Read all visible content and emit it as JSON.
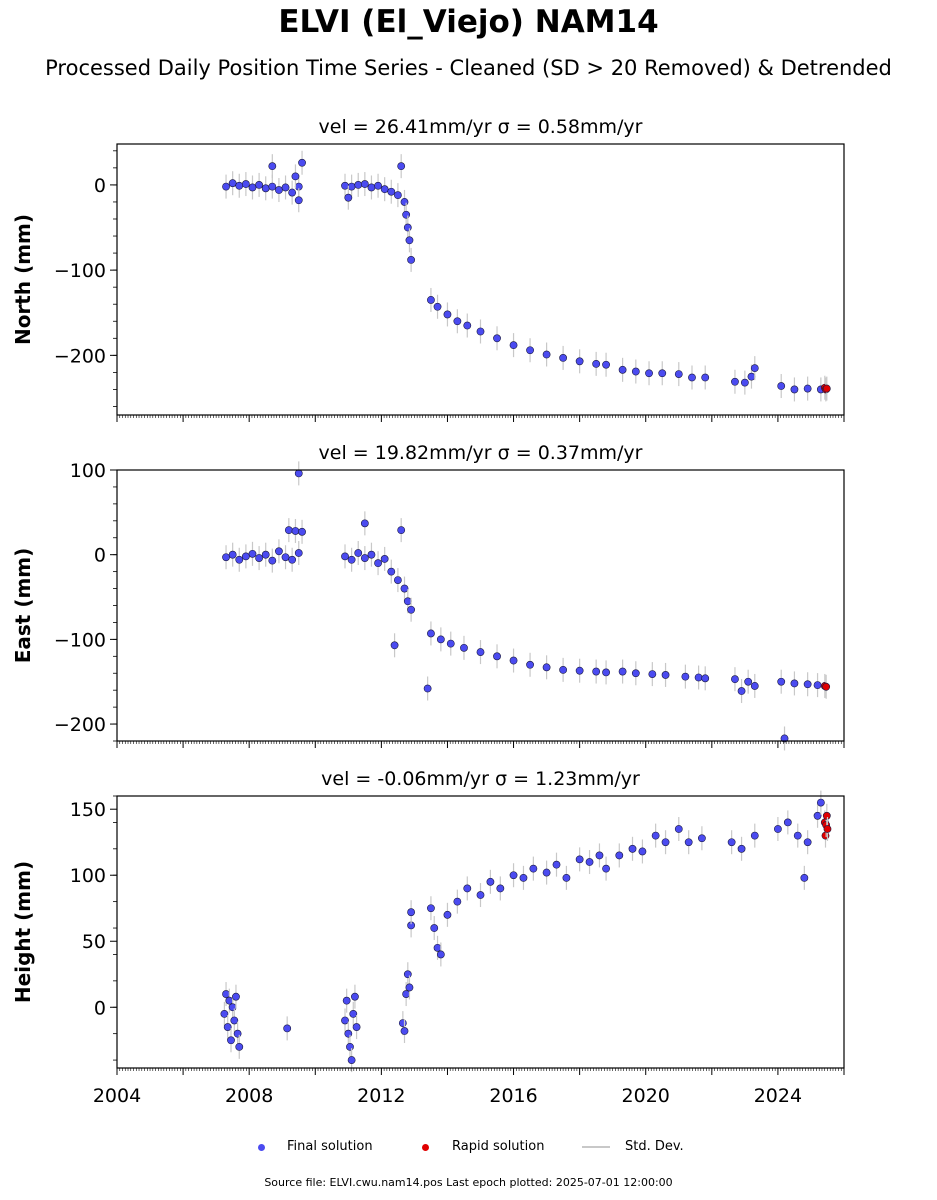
{
  "title": "ELVI (El_Viejo) NAM14",
  "subtitle": "Processed Daily Position Time Series - Cleaned (SD > 20 Removed) & Detrended",
  "footer": "Source file: ELVI.cwu.nam14.pos  Last epoch plotted: 2025-07-01 12:00:00",
  "legend": {
    "final_label": "Final solution",
    "rapid_label": "Rapid solution",
    "sd_label": "Std. Dev."
  },
  "colors": {
    "final": "#4b4bf0",
    "rapid": "#e00000",
    "std_dev": "#c8c8c8",
    "marker_edge": "#1a1a40"
  },
  "chart_data": [
    {
      "type": "scatter",
      "panel_title": "vel = 26.41mm/yr   σ = 0.58mm/yr",
      "ylabel": "North (mm)",
      "xlim": [
        2004,
        2026
      ],
      "ylim": [
        -270,
        48
      ],
      "yticks": [
        0,
        -100,
        -200
      ],
      "ytick_labels": [
        "0",
        "−100",
        "−200"
      ],
      "show_xtick_labels": false,
      "series": [
        {
          "name": "Final solution",
          "points": [
            [
              2007.3,
              -2
            ],
            [
              2007.5,
              2
            ],
            [
              2007.7,
              -1
            ],
            [
              2007.9,
              1
            ],
            [
              2008.1,
              -3
            ],
            [
              2008.3,
              0
            ],
            [
              2008.5,
              -4
            ],
            [
              2008.7,
              -2
            ],
            [
              2008.9,
              -6
            ],
            [
              2009.1,
              -3
            ],
            [
              2009.3,
              -9
            ],
            [
              2009.5,
              -2
            ],
            [
              2008.7,
              22
            ],
            [
              2009.4,
              10
            ],
            [
              2009.6,
              26
            ],
            [
              2009.5,
              -18
            ],
            [
              2010.9,
              -1
            ],
            [
              2011.1,
              -2
            ],
            [
              2011.3,
              0
            ],
            [
              2011.5,
              1
            ],
            [
              2011.7,
              -3
            ],
            [
              2011.9,
              -1
            ],
            [
              2012.1,
              -5
            ],
            [
              2012.3,
              -8
            ],
            [
              2012.5,
              -12
            ],
            [
              2012.6,
              22
            ],
            [
              2011.0,
              -15
            ],
            [
              2012.7,
              -20
            ],
            [
              2012.75,
              -35
            ],
            [
              2012.8,
              -50
            ],
            [
              2012.85,
              -65
            ],
            [
              2012.9,
              -88
            ],
            [
              2013.5,
              -135
            ],
            [
              2013.7,
              -143
            ],
            [
              2014.0,
              -152
            ],
            [
              2014.3,
              -160
            ],
            [
              2014.6,
              -165
            ],
            [
              2015.0,
              -172
            ],
            [
              2015.5,
              -180
            ],
            [
              2016.0,
              -188
            ],
            [
              2016.5,
              -194
            ],
            [
              2017.0,
              -199
            ],
            [
              2017.5,
              -203
            ],
            [
              2018.0,
              -207
            ],
            [
              2018.5,
              -210
            ],
            [
              2018.8,
              -211
            ],
            [
              2019.3,
              -217
            ],
            [
              2019.7,
              -219
            ],
            [
              2020.1,
              -221
            ],
            [
              2020.5,
              -221
            ],
            [
              2021.0,
              -222
            ],
            [
              2021.4,
              -226
            ],
            [
              2021.8,
              -226
            ],
            [
              2022.7,
              -231
            ],
            [
              2023.0,
              -232
            ],
            [
              2023.2,
              -225
            ],
            [
              2023.3,
              -215
            ],
            [
              2024.1,
              -236
            ],
            [
              2024.5,
              -240
            ],
            [
              2024.9,
              -239
            ],
            [
              2025.3,
              -240
            ]
          ]
        },
        {
          "name": "Rapid solution",
          "points": [
            [
              2025.42,
              -238
            ],
            [
              2025.45,
              -240
            ],
            [
              2025.48,
              -239
            ]
          ]
        }
      ]
    },
    {
      "type": "scatter",
      "panel_title": "vel = 19.82mm/yr   σ = 0.37mm/yr",
      "ylabel": "East (mm)",
      "xlim": [
        2004,
        2026
      ],
      "ylim": [
        -220,
        100
      ],
      "yticks": [
        100,
        0,
        -100,
        -200
      ],
      "ytick_labels": [
        "100",
        "0",
        "−100",
        "−200"
      ],
      "show_xtick_labels": false,
      "series": [
        {
          "name": "Final solution",
          "points": [
            [
              2007.3,
              -3
            ],
            [
              2007.5,
              0
            ],
            [
              2007.7,
              -6
            ],
            [
              2007.9,
              -2
            ],
            [
              2008.1,
              1
            ],
            [
              2008.3,
              -4
            ],
            [
              2008.5,
              0
            ],
            [
              2008.7,
              -7
            ],
            [
              2008.9,
              4
            ],
            [
              2009.1,
              -3
            ],
            [
              2009.3,
              -6
            ],
            [
              2009.5,
              2
            ],
            [
              2009.2,
              29
            ],
            [
              2009.4,
              28
            ],
            [
              2009.6,
              27
            ],
            [
              2009.5,
              96
            ],
            [
              2010.9,
              -2
            ],
            [
              2011.1,
              -6
            ],
            [
              2011.3,
              2
            ],
            [
              2011.5,
              -4
            ],
            [
              2011.7,
              0
            ],
            [
              2011.9,
              -10
            ],
            [
              2012.1,
              -5
            ],
            [
              2012.3,
              -20
            ],
            [
              2012.5,
              -30
            ],
            [
              2012.6,
              29
            ],
            [
              2011.5,
              37
            ],
            [
              2012.4,
              -107
            ],
            [
              2012.7,
              -40
            ],
            [
              2012.8,
              -55
            ],
            [
              2012.9,
              -65
            ],
            [
              2013.4,
              -158
            ],
            [
              2013.5,
              -93
            ],
            [
              2013.8,
              -100
            ],
            [
              2014.1,
              -105
            ],
            [
              2014.5,
              -110
            ],
            [
              2015.0,
              -115
            ],
            [
              2015.5,
              -120
            ],
            [
              2016.0,
              -125
            ],
            [
              2016.5,
              -130
            ],
            [
              2017.0,
              -133
            ],
            [
              2017.5,
              -136
            ],
            [
              2018.0,
              -137
            ],
            [
              2018.5,
              -138
            ],
            [
              2018.8,
              -139
            ],
            [
              2019.3,
              -138
            ],
            [
              2019.7,
              -140
            ],
            [
              2020.2,
              -141
            ],
            [
              2020.6,
              -142
            ],
            [
              2021.2,
              -144
            ],
            [
              2021.6,
              -145
            ],
            [
              2021.8,
              -146
            ],
            [
              2022.7,
              -147
            ],
            [
              2022.9,
              -161
            ],
            [
              2023.1,
              -150
            ],
            [
              2023.3,
              -155
            ],
            [
              2024.1,
              -150
            ],
            [
              2024.5,
              -152
            ],
            [
              2024.9,
              -153
            ],
            [
              2025.2,
              -154
            ],
            [
              2024.2,
              -217
            ]
          ]
        },
        {
          "name": "Rapid solution",
          "points": [
            [
              2025.42,
              -155
            ],
            [
              2025.46,
              -156
            ]
          ]
        }
      ]
    },
    {
      "type": "scatter",
      "panel_title": "vel = -0.06mm/yr   σ = 1.23mm/yr",
      "ylabel": "Height (mm)",
      "xlabel": "",
      "xlim": [
        2004,
        2026
      ],
      "ylim": [
        -46,
        160
      ],
      "yticks": [
        150,
        100,
        50,
        0
      ],
      "ytick_labels": [
        "150",
        "100",
        "50",
        "0"
      ],
      "xticks": [
        2004,
        2008,
        2012,
        2016,
        2020,
        2024
      ],
      "xtick_labels": [
        "2004",
        "2008",
        "2012",
        "2016",
        "2020",
        "2024"
      ],
      "show_xtick_labels": true,
      "series": [
        {
          "name": "Final solution",
          "points": [
            [
              2007.25,
              -5
            ],
            [
              2007.3,
              10
            ],
            [
              2007.35,
              -15
            ],
            [
              2007.4,
              5
            ],
            [
              2007.45,
              -25
            ],
            [
              2007.5,
              0
            ],
            [
              2007.55,
              -10
            ],
            [
              2007.6,
              8
            ],
            [
              2007.65,
              -20
            ],
            [
              2007.7,
              -30
            ],
            [
              2009.15,
              -16
            ],
            [
              2010.9,
              -10
            ],
            [
              2010.95,
              5
            ],
            [
              2011.0,
              -20
            ],
            [
              2011.05,
              -30
            ],
            [
              2011.1,
              -40
            ],
            [
              2011.15,
              -5
            ],
            [
              2011.2,
              8
            ],
            [
              2011.25,
              -15
            ],
            [
              2012.65,
              -12
            ],
            [
              2012.7,
              -18
            ],
            [
              2012.75,
              10
            ],
            [
              2012.8,
              25
            ],
            [
              2012.85,
              15
            ],
            [
              2012.9,
              62
            ],
            [
              2012.9,
              72
            ],
            [
              2013.5,
              75
            ],
            [
              2013.6,
              60
            ],
            [
              2013.7,
              45
            ],
            [
              2013.8,
              40
            ],
            [
              2014.0,
              70
            ],
            [
              2014.3,
              80
            ],
            [
              2014.6,
              90
            ],
            [
              2015.0,
              85
            ],
            [
              2015.3,
              95
            ],
            [
              2015.6,
              90
            ],
            [
              2016.0,
              100
            ],
            [
              2016.3,
              98
            ],
            [
              2016.6,
              105
            ],
            [
              2017.0,
              102
            ],
            [
              2017.3,
              108
            ],
            [
              2017.6,
              98
            ],
            [
              2018.0,
              112
            ],
            [
              2018.3,
              110
            ],
            [
              2018.6,
              115
            ],
            [
              2018.8,
              105
            ],
            [
              2019.2,
              115
            ],
            [
              2019.6,
              120
            ],
            [
              2019.9,
              118
            ],
            [
              2020.3,
              130
            ],
            [
              2020.6,
              125
            ],
            [
              2021.0,
              135
            ],
            [
              2021.3,
              125
            ],
            [
              2021.7,
              128
            ],
            [
              2022.6,
              125
            ],
            [
              2022.9,
              120
            ],
            [
              2023.3,
              130
            ],
            [
              2024.0,
              135
            ],
            [
              2024.3,
              140
            ],
            [
              2024.6,
              130
            ],
            [
              2024.9,
              125
            ],
            [
              2025.2,
              145
            ],
            [
              2024.8,
              98
            ],
            [
              2025.3,
              155
            ]
          ]
        },
        {
          "name": "Rapid solution",
          "points": [
            [
              2025.42,
              140
            ],
            [
              2025.44,
              130
            ],
            [
              2025.46,
              138
            ],
            [
              2025.48,
              145
            ],
            [
              2025.5,
              135
            ]
          ]
        }
      ]
    }
  ]
}
